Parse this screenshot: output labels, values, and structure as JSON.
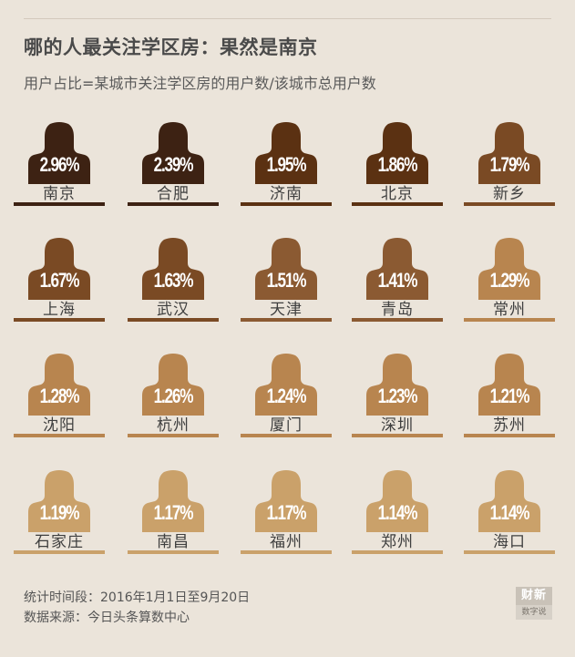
{
  "title": "哪的人最关注学区房：果然是南京",
  "subtitle": "用户占比=某城市关注学区房的用户数/该城市总用户数",
  "chart_data": {
    "type": "pictogram",
    "title": "哪的人最关注学区房：果然是南京",
    "subtitle": "用户占比=某城市关注学区房的用户数/该城市总用户数",
    "unit": "%",
    "items": [
      {
        "city": "南京",
        "value": 2.96,
        "label": "2.96%",
        "color": "#3d2213"
      },
      {
        "city": "合肥",
        "value": 2.39,
        "label": "2.39%",
        "color": "#3d2213"
      },
      {
        "city": "济南",
        "value": 1.95,
        "label": "1.95%",
        "color": "#5b3112"
      },
      {
        "city": "北京",
        "value": 1.86,
        "label": "1.86%",
        "color": "#5b3112"
      },
      {
        "city": "新乡",
        "value": 1.79,
        "label": "1.79%",
        "color": "#7a4a24"
      },
      {
        "city": "上海",
        "value": 1.67,
        "label": "1.67%",
        "color": "#7a4a24"
      },
      {
        "city": "武汉",
        "value": 1.63,
        "label": "1.63%",
        "color": "#7a4a24"
      },
      {
        "city": "天津",
        "value": 1.51,
        "label": "1.51%",
        "color": "#8b5a32"
      },
      {
        "city": "青岛",
        "value": 1.41,
        "label": "1.41%",
        "color": "#8b5a32"
      },
      {
        "city": "常州",
        "value": 1.29,
        "label": "1.29%",
        "color": "#b8854f"
      },
      {
        "city": "沈阳",
        "value": 1.28,
        "label": "1.28%",
        "color": "#b8854f"
      },
      {
        "city": "杭州",
        "value": 1.26,
        "label": "1.26%",
        "color": "#b8854f"
      },
      {
        "city": "厦门",
        "value": 1.24,
        "label": "1.24%",
        "color": "#b8854f"
      },
      {
        "city": "深圳",
        "value": 1.23,
        "label": "1.23%",
        "color": "#b8854f"
      },
      {
        "city": "苏州",
        "value": 1.21,
        "label": "1.21%",
        "color": "#b8854f"
      },
      {
        "city": "石家庄",
        "value": 1.19,
        "label": "1.19%",
        "color": "#caa16a"
      },
      {
        "city": "南昌",
        "value": 1.17,
        "label": "1.17%",
        "color": "#caa16a"
      },
      {
        "city": "福州",
        "value": 1.17,
        "label": "1.17%",
        "color": "#caa16a"
      },
      {
        "city": "郑州",
        "value": 1.14,
        "label": "1.14%",
        "color": "#caa16a"
      },
      {
        "city": "海口",
        "value": 1.14,
        "label": "1.14%",
        "color": "#caa16a"
      }
    ]
  },
  "footer": {
    "period": "统计时间段：2016年1月1日至9月20日",
    "source": "数据来源：今日头条算数中心"
  },
  "logo": {
    "line1": "财新",
    "line2": "数字说"
  }
}
